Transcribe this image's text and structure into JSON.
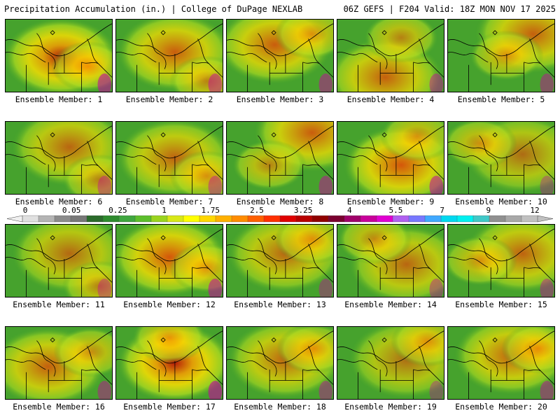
{
  "header": {
    "title": "Precipitation Accumulation (in.) | College of DuPage NEXLAB",
    "run_info": "06Z GEFS | F204 Valid: 18Z MON NOV 17 2025"
  },
  "panel_label_prefix": "Ensemble Member: ",
  "members": [
    {
      "label": "Ensemble Member: 1",
      "intensity": 0.75,
      "hot": [
        0.52,
        0.52
      ],
      "hot2": [
        0.78,
        0.65
      ]
    },
    {
      "label": "Ensemble Member: 2",
      "intensity": 0.6,
      "hot": [
        0.55,
        0.45
      ],
      "hot2": [
        0.85,
        0.85
      ]
    },
    {
      "label": "Ensemble Member: 3",
      "intensity": 0.6,
      "hot": [
        0.45,
        0.35
      ],
      "hot2": [
        0.8,
        0.2
      ]
    },
    {
      "label": "Ensemble Member: 4",
      "intensity": 0.55,
      "hot": [
        0.45,
        0.8
      ],
      "hot2": [
        0.6,
        0.25
      ]
    },
    {
      "label": "Ensemble Member: 5",
      "intensity": 0.55,
      "hot": [
        0.8,
        0.2
      ],
      "hot2": [
        0.55,
        0.5
      ]
    },
    {
      "label": "Ensemble Member: 6",
      "intensity": 0.45,
      "hot": [
        0.6,
        0.35
      ],
      "hot2": [
        0.88,
        0.8
      ]
    },
    {
      "label": "Ensemble Member: 7",
      "intensity": 0.5,
      "hot": [
        0.55,
        0.5
      ],
      "hot2": [
        0.85,
        0.75
      ]
    },
    {
      "label": "Ensemble Member: 8",
      "intensity": 0.6,
      "hot": [
        0.8,
        0.15
      ],
      "hot2": [
        0.4,
        0.6
      ]
    },
    {
      "label": "Ensemble Member: 9",
      "intensity": 0.7,
      "hot": [
        0.6,
        0.6
      ],
      "hot2": [
        0.75,
        0.2
      ]
    },
    {
      "label": "Ensemble Member: 10",
      "intensity": 0.35,
      "hot": [
        0.7,
        0.45
      ],
      "hot2": [
        0.3,
        0.3
      ]
    },
    {
      "label": "Ensemble Member: 11",
      "intensity": 0.4,
      "hot": [
        0.6,
        0.4
      ],
      "hot2": [
        0.88,
        0.85
      ]
    },
    {
      "label": "Ensemble Member: 12",
      "intensity": 0.7,
      "hot": [
        0.5,
        0.45
      ],
      "hot2": [
        0.85,
        0.6
      ]
    },
    {
      "label": "Ensemble Member: 13",
      "intensity": 0.45,
      "hot": [
        0.55,
        0.4
      ],
      "hot2": [
        0.8,
        0.2
      ]
    },
    {
      "label": "Ensemble Member: 14",
      "intensity": 0.45,
      "hot": [
        0.65,
        0.55
      ],
      "hot2": [
        0.35,
        0.2
      ]
    },
    {
      "label": "Ensemble Member: 15",
      "intensity": 0.5,
      "hot": [
        0.7,
        0.4
      ],
      "hot2": [
        0.3,
        0.5
      ]
    },
    {
      "label": "Ensemble Member: 16",
      "intensity": 0.55,
      "hot": [
        0.4,
        0.55
      ],
      "hot2": [
        0.8,
        0.35
      ]
    },
    {
      "label": "Ensemble Member: 17",
      "intensity": 0.8,
      "hot": [
        0.55,
        0.5
      ],
      "hot2": [
        0.5,
        0.15
      ]
    },
    {
      "label": "Ensemble Member: 18",
      "intensity": 0.5,
      "hot": [
        0.55,
        0.45
      ],
      "hot2": [
        0.82,
        0.3
      ]
    },
    {
      "label": "Ensemble Member: 19",
      "intensity": 0.35,
      "hot": [
        0.65,
        0.45
      ],
      "hot2": [
        0.85,
        0.2
      ]
    },
    {
      "label": "Ensemble Member: 20",
      "intensity": 0.55,
      "hot": [
        0.6,
        0.4
      ],
      "hot2": [
        0.85,
        0.3
      ]
    }
  ],
  "legend": {
    "tick_labels": [
      "0",
      "0.05",
      "0.25",
      "1",
      "1.75",
      "2.5",
      "3.25",
      "4",
      "5.5",
      "7",
      "9",
      "12"
    ],
    "colors": [
      "#e0e0e0",
      "#b4b4b4",
      "#8c8c8c",
      "#787878",
      "#2b6b2b",
      "#2e8b2e",
      "#3fa63f",
      "#5cbe2c",
      "#9ad41e",
      "#d8e817",
      "#ffff00",
      "#ffd700",
      "#ffb000",
      "#ff8c00",
      "#ff6000",
      "#ff3000",
      "#e00000",
      "#b80000",
      "#900000",
      "#7a0030",
      "#a0006a",
      "#c8009a",
      "#e000d0",
      "#b060f0",
      "#7878ff",
      "#40a8ff",
      "#00d8f0",
      "#00f0f0",
      "#40c8c8",
      "#909090",
      "#a8a8a8",
      "#c0c0c0"
    ]
  }
}
